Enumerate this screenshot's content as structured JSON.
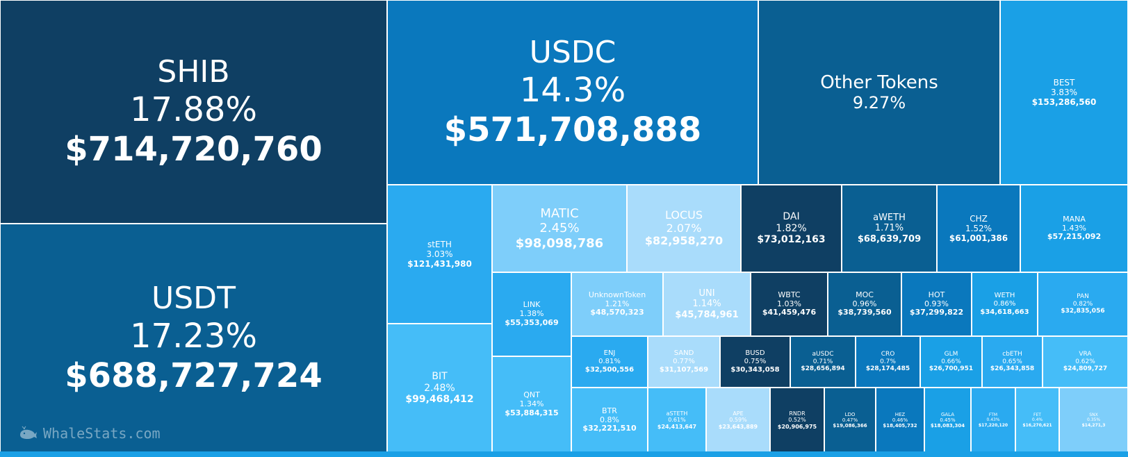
{
  "watermark": {
    "text": "WhaleStats.com",
    "icon": "whale-icon"
  },
  "colors": {
    "darkest": "#0f3f63",
    "dark": "#0a5f92",
    "mid": "#0a78bd",
    "bright": "#1aa0e6",
    "light": "#45bdf8",
    "lighter": "#7ecefa",
    "lightest": "#a9dcfb",
    "border": "#ffffff"
  },
  "chart_data": {
    "type": "treemap",
    "title": "",
    "items": [
      {
        "name": "SHIB",
        "pct": "17.88%",
        "value": "$714,720,760",
        "color": "#0f3f63"
      },
      {
        "name": "USDT",
        "pct": "17.23%",
        "value": "$688,727,724",
        "color": "#0a5f92"
      },
      {
        "name": "USDC",
        "pct": "14.3%",
        "value": "$571,708,888",
        "color": "#0a78bd"
      },
      {
        "name": "Other Tokens",
        "pct": "9.27%",
        "value": "",
        "color": "#0a5f92"
      },
      {
        "name": "BEST",
        "pct": "3.83%",
        "value": "$153,286,560",
        "color": "#1aa0e6"
      },
      {
        "name": "stETH",
        "pct": "3.03%",
        "value": "$121,431,980",
        "color": "#2aaaf0"
      },
      {
        "name": "BIT",
        "pct": "2.48%",
        "value": "$99,468,412",
        "color": "#45bdf8"
      },
      {
        "name": "MATIC",
        "pct": "2.45%",
        "value": "$98,098,786",
        "color": "#7ecefa"
      },
      {
        "name": "LOCUS",
        "pct": "2.07%",
        "value": "$82,958,270",
        "color": "#a9dcfb"
      },
      {
        "name": "DAI",
        "pct": "1.82%",
        "value": "$73,012,163",
        "color": "#0f3f63"
      },
      {
        "name": "aWETH",
        "pct": "1.71%",
        "value": "$68,639,709",
        "color": "#0a5f92"
      },
      {
        "name": "CHZ",
        "pct": "1.52%",
        "value": "$61,001,386",
        "color": "#0a78bd"
      },
      {
        "name": "MANA",
        "pct": "1.43%",
        "value": "$57,215,092",
        "color": "#1aa0e6"
      },
      {
        "name": "LINK",
        "pct": "1.38%",
        "value": "$55,353,069",
        "color": "#2aaaf0"
      },
      {
        "name": "QNT",
        "pct": "1.34%",
        "value": "$53,884,315",
        "color": "#45bdf8"
      },
      {
        "name": "UnknownToken",
        "pct": "1.21%",
        "value": "$48,570,323",
        "color": "#7ecefa"
      },
      {
        "name": "UNI",
        "pct": "1.14%",
        "value": "$45,784,961",
        "color": "#a9dcfb"
      },
      {
        "name": "WBTC",
        "pct": "1.03%",
        "value": "$41,459,476",
        "color": "#0f3f63"
      },
      {
        "name": "MOC",
        "pct": "0.96%",
        "value": "$38,739,560",
        "color": "#0a5f92"
      },
      {
        "name": "HOT",
        "pct": "0.93%",
        "value": "$37,299,822",
        "color": "#0a78bd"
      },
      {
        "name": "WETH",
        "pct": "0.86%",
        "value": "$34,618,663",
        "color": "#1aa0e6"
      },
      {
        "name": "PAN",
        "pct": "0.82%",
        "value": "$32,835,056",
        "color": "#2aaaf0"
      },
      {
        "name": "ENJ",
        "pct": "0.81%",
        "value": "$32,500,556",
        "color": "#2aaaf0"
      },
      {
        "name": "BTR",
        "pct": "0.8%",
        "value": "$32,221,510",
        "color": "#45bdf8"
      },
      {
        "name": "SAND",
        "pct": "0.77%",
        "value": "$31,107,569",
        "color": "#a9dcfb"
      },
      {
        "name": "BUSD",
        "pct": "0.75%",
        "value": "$30,343,058",
        "color": "#0f3f63"
      },
      {
        "name": "aUSDC",
        "pct": "0.71%",
        "value": "$28,656,894",
        "color": "#0a5f92"
      },
      {
        "name": "CRO",
        "pct": "0.7%",
        "value": "$28,174,485",
        "color": "#0a78bd"
      },
      {
        "name": "GLM",
        "pct": "0.66%",
        "value": "$26,700,951",
        "color": "#1aa0e6"
      },
      {
        "name": "cbETH",
        "pct": "0.65%",
        "value": "$26,343,858",
        "color": "#2aaaf0"
      },
      {
        "name": "VRA",
        "pct": "0.62%",
        "value": "$24,809,727",
        "color": "#45bdf8"
      },
      {
        "name": "aSTETH",
        "pct": "0.61%",
        "value": "$24,413,647",
        "color": "#45bdf8"
      },
      {
        "name": "APE",
        "pct": "0.59%",
        "value": "$23,643,889",
        "color": "#a9dcfb"
      },
      {
        "name": "RNDR",
        "pct": "0.52%",
        "value": "$20,906,975",
        "color": "#0f3f63"
      },
      {
        "name": "LDO",
        "pct": "0.47%",
        "value": "$19,086,366",
        "color": "#0a5f92"
      },
      {
        "name": "HEZ",
        "pct": "0.46%",
        "value": "$18,405,732",
        "color": "#0a78bd"
      },
      {
        "name": "GALA",
        "pct": "0.45%",
        "value": "$18,083,304",
        "color": "#1aa0e6"
      },
      {
        "name": "FTM",
        "pct": "0.43%",
        "value": "$17,220,120",
        "color": "#2aaaf0"
      },
      {
        "name": "FET",
        "pct": "0.4%",
        "value": "$16,270,621",
        "color": "#45bdf8"
      },
      {
        "name": "SNX",
        "pct": "0.35%",
        "value": "$14,271,3",
        "color": "#7ecefa"
      }
    ]
  }
}
